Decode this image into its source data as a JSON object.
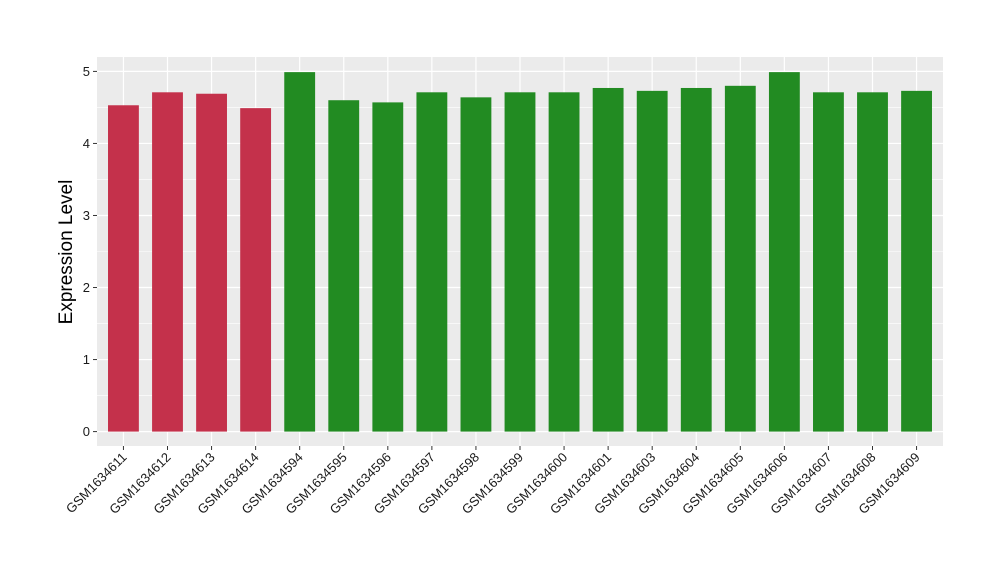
{
  "chart_data": {
    "type": "bar",
    "title": "",
    "xlabel": "",
    "ylabel": "Expression Level",
    "ylim": [
      -0.2,
      5.2
    ],
    "yticks": [
      0,
      1,
      2,
      3,
      4,
      5
    ],
    "grid": true,
    "legend": "none",
    "categories": [
      "GSM1634611",
      "GSM1634612",
      "GSM1634613",
      "GSM1634614",
      "GSM1634594",
      "GSM1634595",
      "GSM1634596",
      "GSM1634597",
      "GSM1634598",
      "GSM1634599",
      "GSM1634600",
      "GSM1634601",
      "GSM1634603",
      "GSM1634604",
      "GSM1634605",
      "GSM1634606",
      "GSM1634607",
      "GSM1634608",
      "GSM1634609"
    ],
    "values": [
      4.53,
      4.71,
      4.69,
      4.49,
      4.99,
      4.6,
      4.57,
      4.71,
      4.64,
      4.71,
      4.71,
      4.77,
      4.73,
      4.77,
      4.8,
      4.99,
      4.71,
      4.71,
      4.73
    ],
    "group_colors": [
      "#c4314b",
      "#c4314b",
      "#c4314b",
      "#c4314b",
      "#228b22",
      "#228b22",
      "#228b22",
      "#228b22",
      "#228b22",
      "#228b22",
      "#228b22",
      "#228b22",
      "#228b22",
      "#228b22",
      "#228b22",
      "#228b22",
      "#228b22",
      "#228b22",
      "#228b22"
    ],
    "panel_background": "#ebebeb",
    "grid_color": "#ffffff"
  }
}
